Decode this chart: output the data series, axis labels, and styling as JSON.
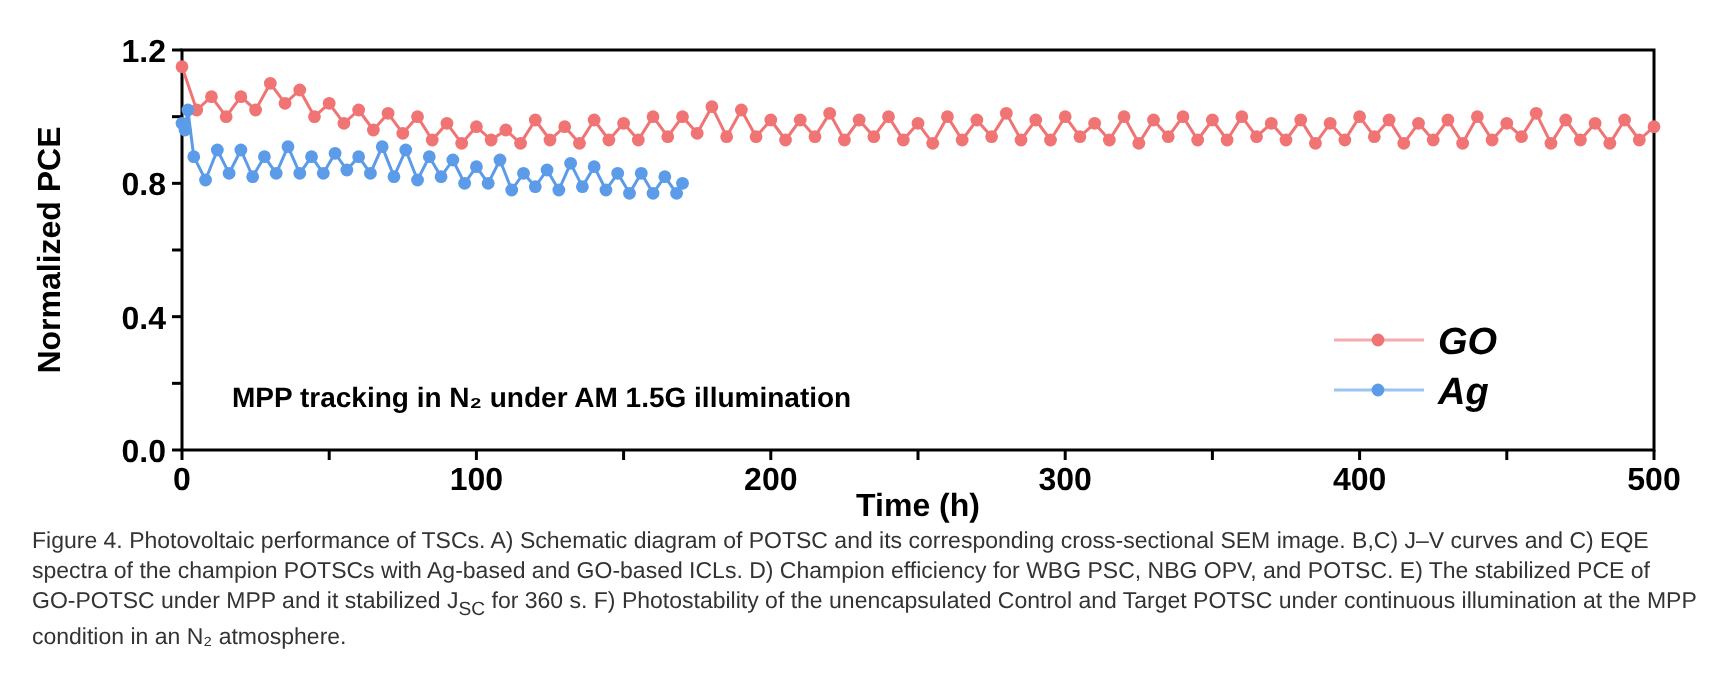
{
  "chart_data": {
    "type": "line",
    "xlabel": "Time (h)",
    "ylabel": "Normalized PCE",
    "xlim": [
      0,
      500
    ],
    "xticks": [
      0,
      {
        "value": 50,
        "label": null
      },
      100,
      {
        "value": 150,
        "label": null
      },
      200,
      {
        "value": 250,
        "label": null
      },
      300,
      {
        "value": 350,
        "label": null
      },
      400,
      {
        "value": 450,
        "label": null
      },
      500
    ],
    "ylim": [
      0,
      1.2
    ],
    "yticks": [
      {
        "value": 0,
        "label": "0.0"
      },
      {
        "value": 0.2,
        "label": null
      },
      0.4,
      {
        "value": 0.6,
        "label": null
      },
      0.8,
      {
        "value": 1,
        "label": null
      },
      1.2
    ],
    "marker": "circle",
    "legend": "bottom right",
    "grid": false,
    "annotations": [
      "MPP tracking in N₂ under AM 1.5G illumination",
      "Figure 4. Photovoltaic performance of TSCs. A) Schematic diagram of POTSC and its corresponding cross-sectional SEM image. B,C) J–V curves and C) EQE spectra of the champion POTSCs with Ag-based and GO-based ICLs. D) Champion efficiency for WBG PSC, NBG OPV, and POTSC. E) The stabilized PCE of GO-POTSC under MPP and it stabilized J$_{SC}$ for 360 s. F) Photostability of the unencapsulated Control and Target POTSC under continuous illumination at the MPP condition in an N₂ atmosphere."
    ],
    "series": [
      {
        "name": "GO",
        "color": "#f07474",
        "x": [
          0,
          5,
          10,
          15,
          20,
          25,
          30,
          35,
          40,
          45,
          50,
          55,
          60,
          65,
          70,
          75,
          80,
          85,
          90,
          95,
          100,
          105,
          110,
          115,
          120,
          125,
          130,
          135,
          140,
          145,
          150,
          155,
          160,
          165,
          170,
          175,
          180,
          185,
          190,
          195,
          200,
          205,
          210,
          215,
          220,
          225,
          230,
          235,
          240,
          245,
          250,
          255,
          260,
          265,
          270,
          275,
          280,
          285,
          290,
          295,
          300,
          305,
          310,
          315,
          320,
          325,
          330,
          335,
          340,
          345,
          350,
          355,
          360,
          365,
          370,
          375,
          380,
          385,
          390,
          395,
          400,
          405,
          410,
          415,
          420,
          425,
          430,
          435,
          440,
          445,
          450,
          455,
          460,
          465,
          470,
          475,
          480,
          485,
          490,
          495,
          500
        ],
        "values": [
          1.15,
          1.02,
          1.06,
          1.0,
          1.06,
          1.02,
          1.1,
          1.04,
          1.08,
          1.0,
          1.04,
          0.98,
          1.02,
          0.96,
          1.01,
          0.95,
          1.0,
          0.93,
          0.98,
          0.92,
          0.97,
          0.93,
          0.96,
          0.92,
          0.99,
          0.93,
          0.97,
          0.92,
          0.99,
          0.93,
          0.98,
          0.93,
          1.0,
          0.94,
          1.0,
          0.95,
          1.03,
          0.94,
          1.02,
          0.94,
          0.99,
          0.93,
          0.99,
          0.94,
          1.01,
          0.93,
          0.99,
          0.94,
          1.0,
          0.93,
          0.98,
          0.92,
          1.0,
          0.93,
          0.99,
          0.94,
          1.01,
          0.93,
          0.99,
          0.93,
          1.0,
          0.94,
          0.98,
          0.93,
          1.0,
          0.92,
          0.99,
          0.94,
          1.0,
          0.93,
          0.99,
          0.93,
          1.0,
          0.94,
          0.98,
          0.93,
          0.99,
          0.92,
          0.98,
          0.93,
          1.0,
          0.94,
          0.99,
          0.92,
          0.98,
          0.93,
          0.99,
          0.92,
          1.0,
          0.93,
          0.98,
          0.94,
          1.01,
          0.92,
          0.99,
          0.93,
          0.98,
          0.92,
          0.99,
          0.93,
          0.97
        ]
      },
      {
        "name": "Ag",
        "color": "#5b9be8",
        "x": [
          0,
          1,
          2,
          4,
          8,
          12,
          16,
          20,
          24,
          28,
          32,
          36,
          40,
          44,
          48,
          52,
          56,
          60,
          64,
          68,
          72,
          76,
          80,
          84,
          88,
          92,
          96,
          100,
          104,
          108,
          112,
          116,
          120,
          124,
          128,
          132,
          136,
          140,
          144,
          148,
          152,
          156,
          160,
          164,
          168,
          170
        ],
        "values": [
          0.98,
          0.96,
          1.02,
          0.88,
          0.81,
          0.9,
          0.83,
          0.9,
          0.82,
          0.88,
          0.83,
          0.91,
          0.83,
          0.88,
          0.83,
          0.89,
          0.84,
          0.88,
          0.83,
          0.91,
          0.82,
          0.9,
          0.81,
          0.88,
          0.82,
          0.87,
          0.8,
          0.85,
          0.8,
          0.87,
          0.78,
          0.83,
          0.79,
          0.84,
          0.78,
          0.86,
          0.79,
          0.85,
          0.78,
          0.83,
          0.77,
          0.83,
          0.77,
          0.82,
          0.77,
          0.8
        ]
      }
    ]
  }
}
